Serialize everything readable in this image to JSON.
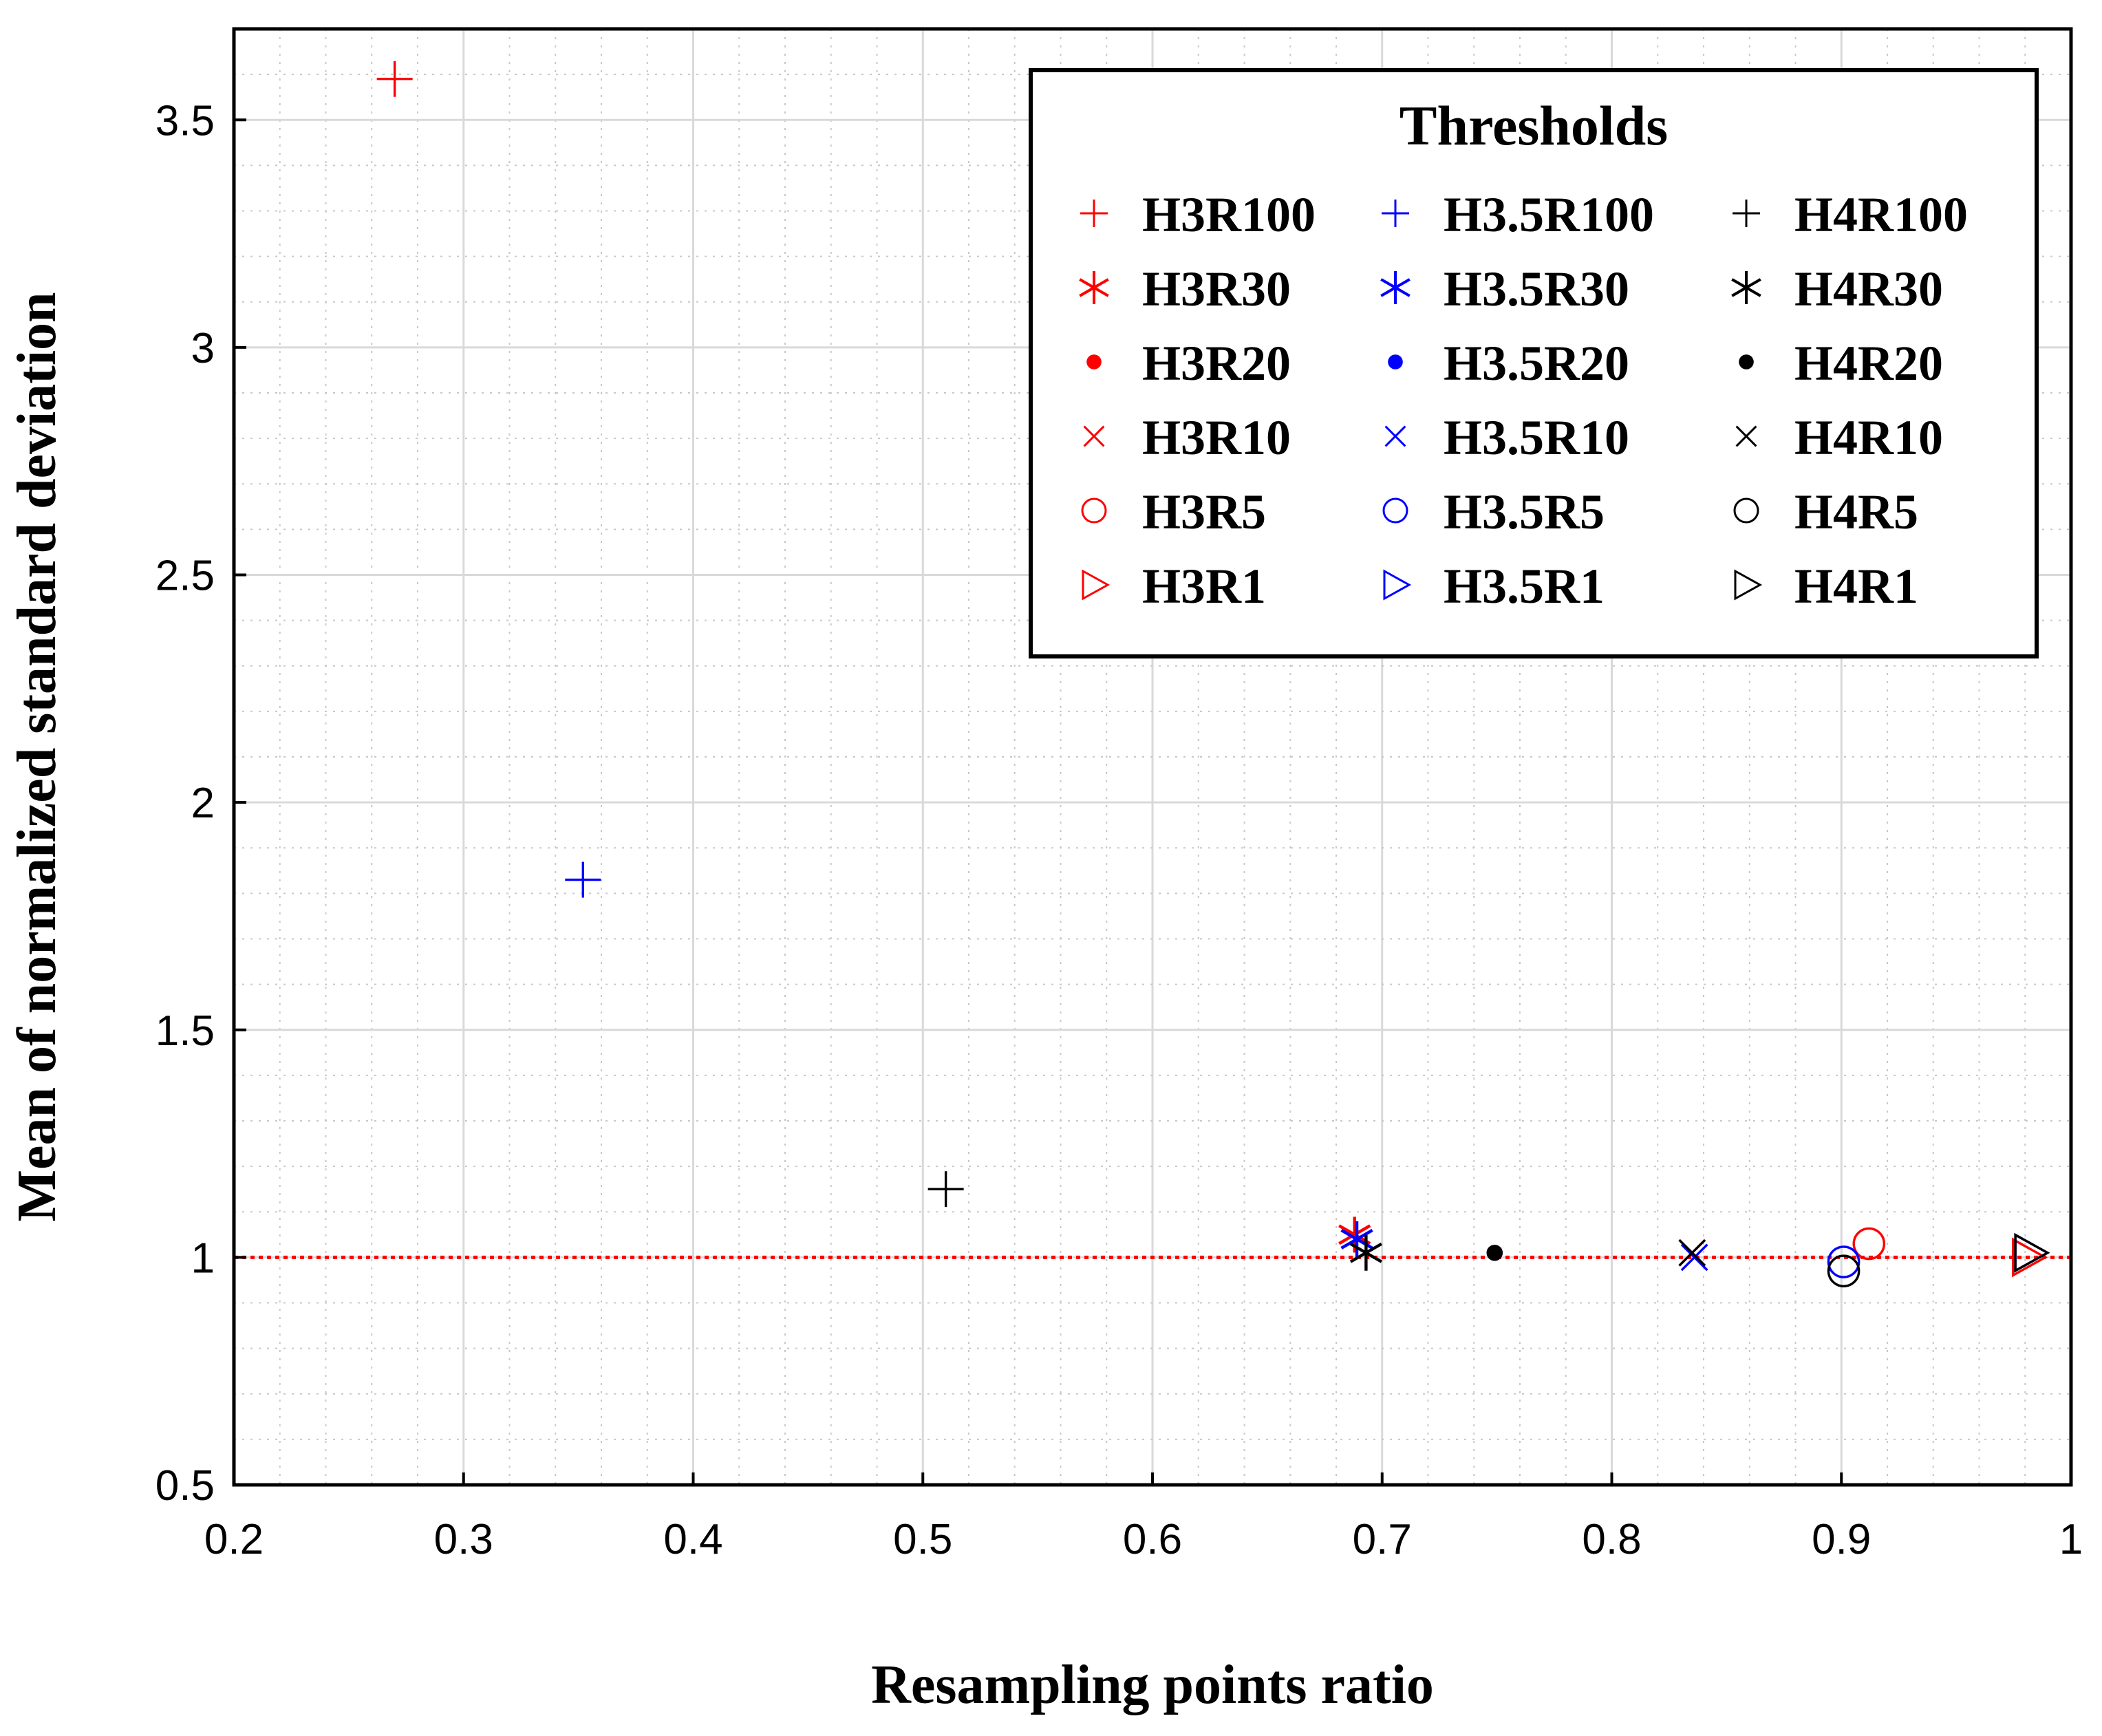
{
  "colors": {
    "H3": "#ff0000",
    "H3.5": "#0000ff",
    "H4": "#000000",
    "reference_line": "#ff0000",
    "grid_major": "#d9d9d9",
    "grid_minor": "#c8c8c8"
  },
  "chart_data": {
    "type": "scatter",
    "title": "",
    "xlabel": "Resampling points ratio",
    "ylabel": "Mean of normalized standard deviation",
    "xlim": [
      0.2,
      1
    ],
    "ylim": [
      0.5,
      3.7
    ],
    "xticks": [
      "0.2",
      "0.3",
      "0.4",
      "0.5",
      "0.6",
      "0.7",
      "0.8",
      "0.9",
      "1"
    ],
    "xtick_values": [
      0.2,
      0.3,
      0.4,
      0.5,
      0.6,
      0.7,
      0.8,
      0.9,
      1.0
    ],
    "yticks": [
      "0.5",
      "1",
      "1.5",
      "2",
      "2.5",
      "3",
      "3.5"
    ],
    "ytick_values": [
      0.5,
      1,
      1.5,
      2,
      2.5,
      3,
      3.5
    ],
    "grid": "major and minor, dotted minor",
    "reference_line": {
      "y": 1,
      "style": "dotted",
      "color": "red"
    },
    "legend": {
      "title": "Thresholds",
      "location": "top-right",
      "columns": 3
    },
    "series": [
      {
        "name": "H3R100",
        "color": "red",
        "marker": "plus",
        "x": 0.27,
        "y": 3.59
      },
      {
        "name": "H3.5R100",
        "color": "blue",
        "marker": "plus",
        "x": 0.352,
        "y": 1.83
      },
      {
        "name": "H4R100",
        "color": "black",
        "marker": "plus",
        "x": 0.51,
        "y": 1.15
      },
      {
        "name": "H3R30",
        "color": "red",
        "marker": "asterisk",
        "x": 0.688,
        "y": 1.05
      },
      {
        "name": "H3.5R30",
        "color": "blue",
        "marker": "asterisk",
        "x": 0.689,
        "y": 1.04
      },
      {
        "name": "H4R30",
        "color": "black",
        "marker": "asterisk",
        "x": 0.693,
        "y": 1.01
      },
      {
        "name": "H3R20",
        "color": "red",
        "marker": "dot",
        "x": 0.749,
        "y": 1.01
      },
      {
        "name": "H3.5R20",
        "color": "blue",
        "marker": "dot",
        "x": 0.749,
        "y": 1.01
      },
      {
        "name": "H4R20",
        "color": "black",
        "marker": "dot",
        "x": 0.749,
        "y": 1.01
      },
      {
        "name": "H3R10",
        "color": "red",
        "marker": "x",
        "x": 0.835,
        "y": 1.01
      },
      {
        "name": "H3.5R10",
        "color": "blue",
        "marker": "x",
        "x": 0.836,
        "y": 1.0
      },
      {
        "name": "H4R10",
        "color": "black",
        "marker": "x",
        "x": 0.835,
        "y": 1.01
      },
      {
        "name": "H3R5",
        "color": "red",
        "marker": "circle",
        "x": 0.912,
        "y": 1.03
      },
      {
        "name": "H3.5R5",
        "color": "blue",
        "marker": "circle",
        "x": 0.901,
        "y": 0.99
      },
      {
        "name": "H4R5",
        "color": "black",
        "marker": "circle",
        "x": 0.901,
        "y": 0.97
      },
      {
        "name": "H3R1",
        "color": "red",
        "marker": "triangle-right",
        "x": 0.981,
        "y": 1.0
      },
      {
        "name": "H3.5R1",
        "color": "blue",
        "marker": "triangle-right",
        "x": 0.982,
        "y": 1.01
      },
      {
        "name": "H4R1",
        "color": "black",
        "marker": "triangle-right",
        "x": 0.982,
        "y": 1.01
      }
    ]
  }
}
